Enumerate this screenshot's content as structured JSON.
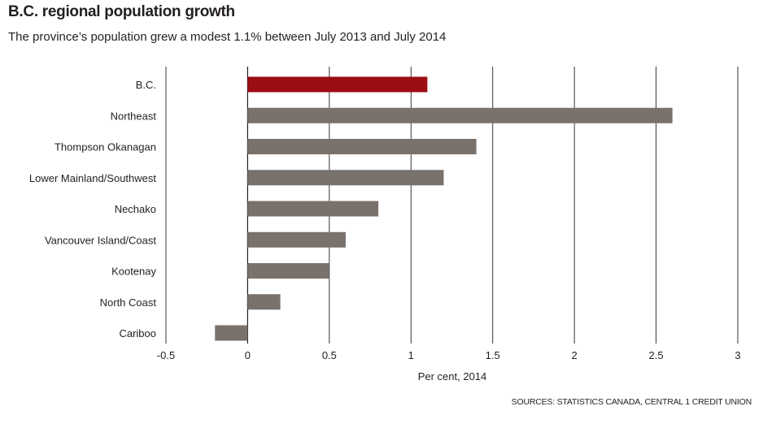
{
  "header": {
    "title": "B.C. regional population growth",
    "subtitle": "The province’s population grew a modest 1.1% between July 2013 and July 2014"
  },
  "footer": {
    "source": "SOURCES: STATISTICS CANADA, CENTRAL 1 CREDIT UNION"
  },
  "chart_data": {
    "type": "bar",
    "orientation": "horizontal",
    "title": "B.C. regional population growth",
    "subtitle": "The province’s population grew a modest 1.1% between July 2013 and July 2014",
    "xlabel": "Per cent, 2014",
    "ylabel": "",
    "categories": [
      "B.C.",
      "Northeast",
      "Thompson Okanagan",
      "Lower Mainland/Southwest",
      "Nechako",
      "Vancouver Island/Coast",
      "Kootenay",
      "North Coast",
      "Cariboo"
    ],
    "values": [
      1.1,
      2.6,
      1.4,
      1.2,
      0.8,
      0.6,
      0.5,
      0.2,
      -0.2
    ],
    "xlim": [
      -0.5,
      3
    ],
    "xticks": [
      -0.5,
      0,
      0.5,
      1,
      1.5,
      2,
      2.5,
      3
    ],
    "xtick_labels": [
      "-0.5",
      "0",
      "0.5",
      "1",
      "1.5",
      "2",
      "2.5",
      "3"
    ],
    "grid": true,
    "colors": {
      "highlight": "#9b0c13",
      "bar": "#79716c",
      "grid": "#231f20"
    },
    "highlight_index": 0
  }
}
